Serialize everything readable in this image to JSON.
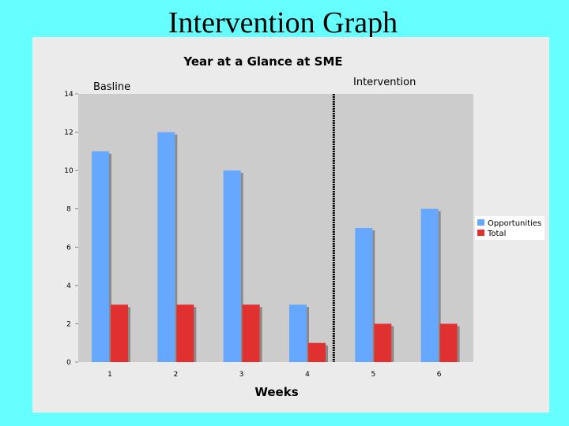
{
  "slide": {
    "title": "Intervention Graph"
  },
  "colors": {
    "background": "#66ffff",
    "panel": "#ebebeb",
    "plot_area": "#cccccc",
    "opportunities": "#66a8ff",
    "total": "#e03030",
    "phase_line": "#000000"
  },
  "chart_data": {
    "type": "bar",
    "title": "Year at a Glance at SME",
    "xlabel": "Weeks",
    "ylabel": "",
    "categories": [
      "1",
      "2",
      "3",
      "4",
      "5",
      "6"
    ],
    "series": [
      {
        "name": "Opportunities",
        "values": [
          11,
          12,
          10,
          3,
          7,
          8
        ]
      },
      {
        "name": "Total",
        "values": [
          3,
          3,
          3,
          1,
          2,
          2
        ]
      }
    ],
    "ylim": [
      0,
      14
    ],
    "yticks": [
      0,
      2,
      4,
      6,
      8,
      10,
      12,
      14
    ],
    "grid": false,
    "legend": "right",
    "phases": [
      {
        "label": "Basline"
      },
      {
        "label": "Intervention"
      }
    ],
    "phase_change_after_category": "4"
  }
}
